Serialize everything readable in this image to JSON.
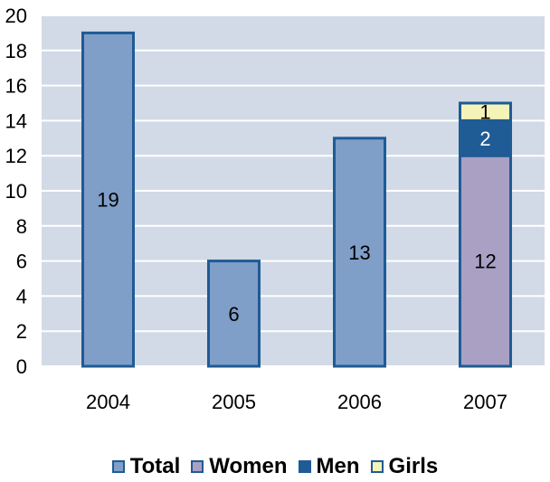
{
  "chart_data": {
    "type": "bar",
    "categories": [
      "2004",
      "2005",
      "2006",
      "2007"
    ],
    "ylim": [
      0,
      20
    ],
    "yticks": [
      0,
      2,
      4,
      6,
      8,
      10,
      12,
      14,
      16,
      18,
      20
    ],
    "grid": true,
    "legend_position": "bottom",
    "series": [
      {
        "name": "Total",
        "values": [
          19,
          6,
          13,
          null
        ],
        "color": "#7f9ec8"
      },
      {
        "name": "Women",
        "values": [
          null,
          null,
          null,
          12
        ],
        "color": "#a9a0c4"
      },
      {
        "name": "Men",
        "values": [
          null,
          null,
          null,
          2
        ],
        "color": "#1f5b95"
      },
      {
        "name": "Girls",
        "values": [
          null,
          null,
          null,
          1
        ],
        "color": "#f5f3b8"
      }
    ],
    "plot_background": "#d1dae6",
    "border_color": "#1f5b95"
  },
  "legend": {
    "total": "Total",
    "women": "Women",
    "men": "Men",
    "girls": "Girls"
  }
}
